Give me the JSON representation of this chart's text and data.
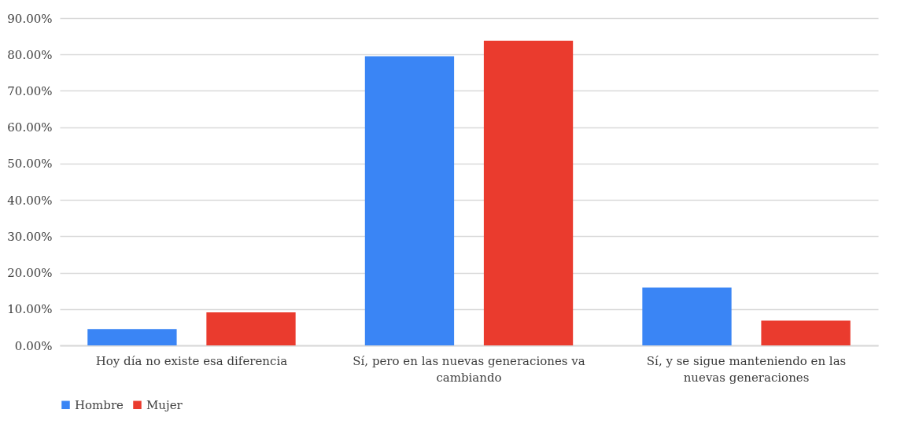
{
  "chart_data": {
    "type": "bar",
    "categories": [
      "Hoy día no existe esa diferencia",
      "Sí, pero en las nuevas generaciones va cambiando",
      "Sí, y se sigue manteniendo en las nuevas generaciones"
    ],
    "series": [
      {
        "name": "Hombre",
        "color": "#3a85f5",
        "values": [
          4.5,
          79.5,
          15.9
        ]
      },
      {
        "name": "Mujer",
        "color": "#ea3b2e",
        "values": [
          9.1,
          83.8,
          6.8
        ]
      }
    ],
    "ylim": [
      0,
      90
    ],
    "yticks": [
      {
        "value": 0,
        "label": "0.00%"
      },
      {
        "value": 10,
        "label": "10.00%"
      },
      {
        "value": 20,
        "label": "20.00%"
      },
      {
        "value": 30,
        "label": "30.00%"
      },
      {
        "value": 40,
        "label": "40.00%"
      },
      {
        "value": 50,
        "label": "50.00%"
      },
      {
        "value": 60,
        "label": "60.00%"
      },
      {
        "value": 70,
        "label": "70.00%"
      },
      {
        "value": 80,
        "label": "80.00%"
      },
      {
        "value": 90,
        "label": "90.00%"
      }
    ],
    "grid": "y",
    "legend": "bottom"
  }
}
